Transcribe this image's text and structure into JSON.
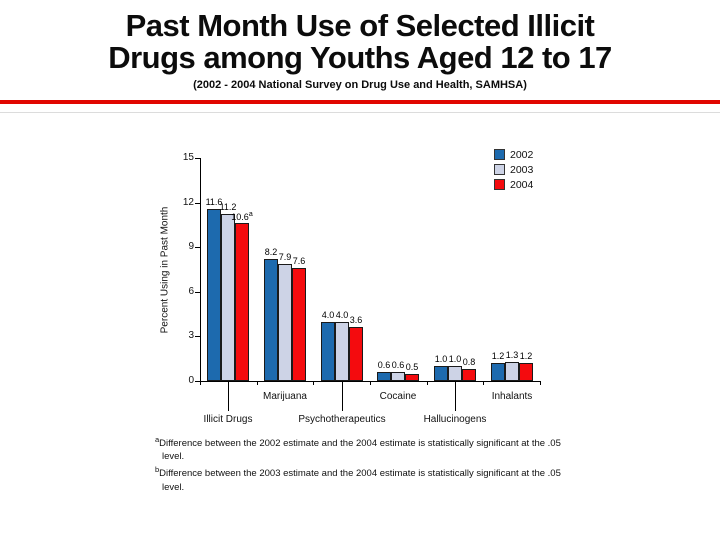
{
  "slide": {
    "title_line1": "Past Month Use of Selected Illicit",
    "title_line2": "Drugs among Youths Aged 12 to 17",
    "subtitle": "(2002 - 2004 National Survey on Drug Use and Health, SAMHSA)",
    "accent_rule_color": "#e10600"
  },
  "chart_data": {
    "type": "bar",
    "title": "",
    "xlabel": "",
    "ylabel": "Percent Using in Past Month",
    "ylim": [
      0,
      15
    ],
    "yticks": [
      0,
      3,
      6,
      9,
      12,
      15
    ],
    "grid": false,
    "legend_position": "top-right",
    "categories": [
      "Illicit Drugs",
      "Marijuana",
      "Psychotherapeutics",
      "Cocaine",
      "Hallucinogens",
      "Inhalants"
    ],
    "category_rows": [
      "lower",
      "upper",
      "lower",
      "upper",
      "lower",
      "upper"
    ],
    "series": [
      {
        "name": "2002",
        "color": "#1d6aae",
        "values": [
          11.6,
          8.2,
          4.0,
          0.6,
          1.0,
          1.2
        ],
        "labels": [
          "11.6",
          "8.2",
          "4.0",
          "0.6",
          "1.0",
          "1.2"
        ],
        "sups": [
          "",
          "",
          "",
          "",
          "",
          ""
        ]
      },
      {
        "name": "2003",
        "color": "#cdd3e6",
        "values": [
          11.2,
          7.9,
          4.0,
          0.6,
          1.0,
          1.3
        ],
        "labels": [
          "11.2",
          "7.9",
          "4.0",
          "0.6",
          "1.0",
          "1.3"
        ],
        "sups": [
          "",
          "",
          "",
          "",
          "",
          ""
        ]
      },
      {
        "name": "2004",
        "color": "#f40b0e",
        "values": [
          10.6,
          7.6,
          3.6,
          0.5,
          0.8,
          1.2
        ],
        "labels": [
          "10.6",
          "7.6",
          "3.6",
          "0.5",
          "0.8",
          "1.2"
        ],
        "sups": [
          "a",
          "",
          "",
          "",
          "",
          ""
        ]
      }
    ]
  },
  "footnotes": [
    {
      "marker": "a",
      "text": "Difference between the 2002 estimate and the 2004 estimate is statistically significant at the .05 level."
    },
    {
      "marker": "b",
      "text": "Difference between the 2003 estimate and the 2004 estimate is statistically significant at the .05 level."
    }
  ]
}
